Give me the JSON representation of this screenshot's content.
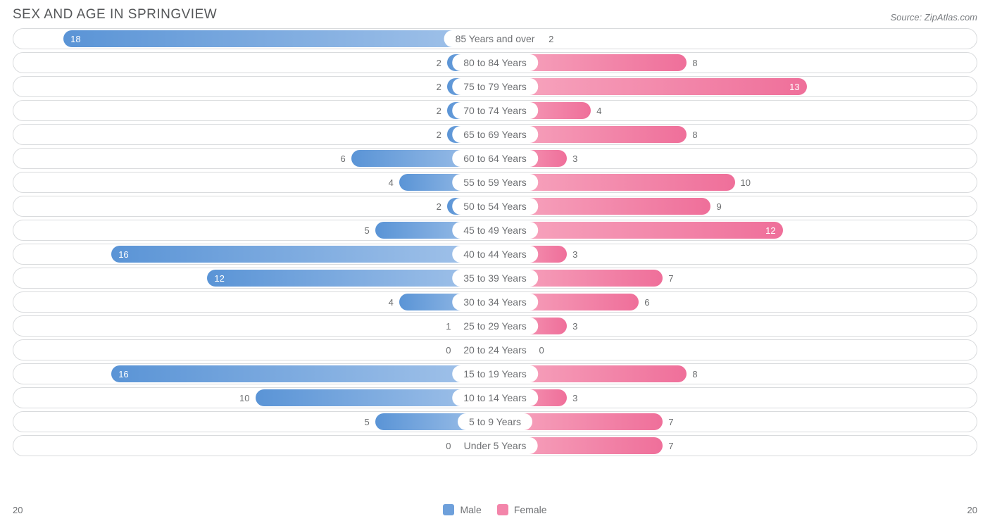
{
  "title": "SEX AND AGE IN SPRINGVIEW",
  "source": "Source: ZipAtlas.com",
  "chart": {
    "type": "population-pyramid",
    "axis_max": 20,
    "axis_left_label": "20",
    "axis_right_label": "20",
    "min_bar_pct": 8,
    "row_border_color": "#d9dbdd",
    "row_bg": "#ffffff",
    "text_color": "#6f7174",
    "value_fontsize": 13,
    "category_fontsize": 14,
    "male": {
      "label": "Male",
      "grad_from": "#a4c4ea",
      "grad_to": "#5a94d6",
      "swatch": "#6ea0db"
    },
    "female": {
      "label": "Female",
      "grad_from": "#f7a8c0",
      "grad_to": "#ef6f9a",
      "swatch": "#f385aa"
    },
    "rows": [
      {
        "category": "85 Years and over",
        "male": 18,
        "female": 2
      },
      {
        "category": "80 to 84 Years",
        "male": 2,
        "female": 8
      },
      {
        "category": "75 to 79 Years",
        "male": 2,
        "female": 13
      },
      {
        "category": "70 to 74 Years",
        "male": 2,
        "female": 4
      },
      {
        "category": "65 to 69 Years",
        "male": 2,
        "female": 8
      },
      {
        "category": "60 to 64 Years",
        "male": 6,
        "female": 3
      },
      {
        "category": "55 to 59 Years",
        "male": 4,
        "female": 10
      },
      {
        "category": "50 to 54 Years",
        "male": 2,
        "female": 9
      },
      {
        "category": "45 to 49 Years",
        "male": 5,
        "female": 12
      },
      {
        "category": "40 to 44 Years",
        "male": 16,
        "female": 3
      },
      {
        "category": "35 to 39 Years",
        "male": 12,
        "female": 7
      },
      {
        "category": "30 to 34 Years",
        "male": 4,
        "female": 6
      },
      {
        "category": "25 to 29 Years",
        "male": 1,
        "female": 3
      },
      {
        "category": "20 to 24 Years",
        "male": 0,
        "female": 0
      },
      {
        "category": "15 to 19 Years",
        "male": 16,
        "female": 8
      },
      {
        "category": "10 to 14 Years",
        "male": 10,
        "female": 3
      },
      {
        "category": "5 to 9 Years",
        "male": 5,
        "female": 7
      },
      {
        "category": "Under 5 Years",
        "male": 0,
        "female": 7
      }
    ]
  }
}
